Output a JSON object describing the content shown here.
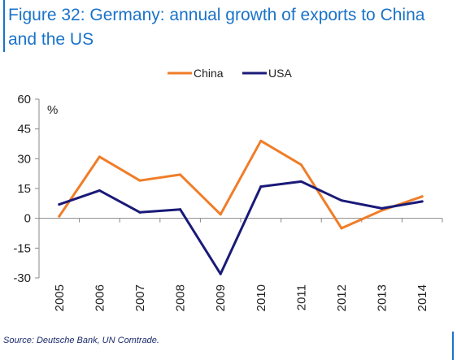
{
  "title": "Figure 32: Germany: annual growth of exports to China and the US",
  "source": "Source: Deutsche Bank, UN Comtrade.",
  "chart_data": {
    "type": "line",
    "title": "Figure 32: Germany: annual growth of exports to China and the US",
    "xlabel": "",
    "ylabel": "%",
    "x": [
      "2005",
      "2006",
      "2007",
      "2008",
      "2009",
      "2010",
      "2011",
      "2012",
      "2013",
      "2014"
    ],
    "ylim": [
      -30,
      60
    ],
    "yticks": [
      -30,
      -15,
      0,
      15,
      30,
      45,
      60
    ],
    "grid": false,
    "legend": "top-center",
    "series": [
      {
        "name": "China",
        "color": "#f07d28",
        "values": [
          1,
          31,
          19,
          22,
          2,
          39,
          27,
          -5,
          4,
          11
        ]
      },
      {
        "name": "USA",
        "color": "#1a1a78",
        "values": [
          7,
          14,
          3,
          4.5,
          -28,
          16,
          18.5,
          9,
          5,
          8.5
        ]
      }
    ]
  }
}
